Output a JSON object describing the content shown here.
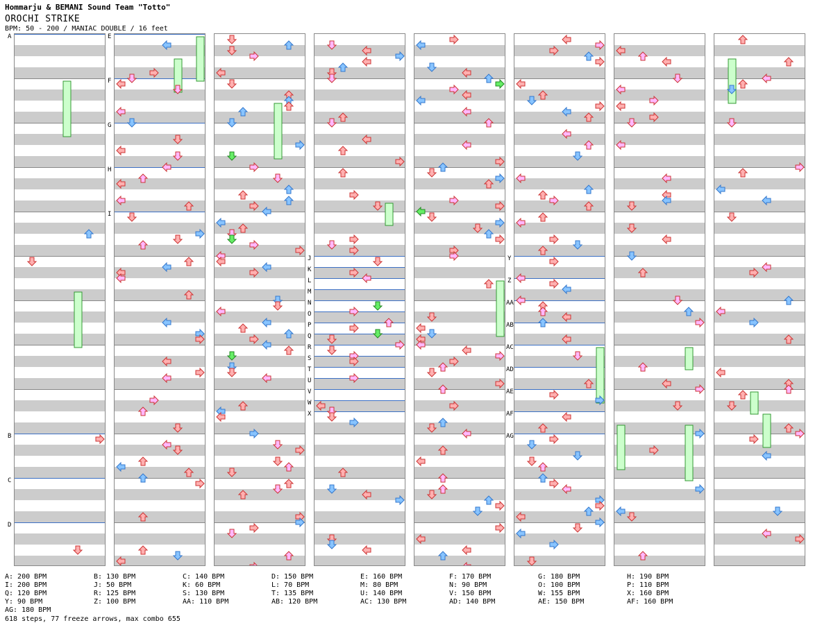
{
  "header": {
    "artist": "Hommarju & BEMANI Sound Team \"Totto\"",
    "title": "OROCHI STRIKE",
    "bpm_line": "BPM: 50 - 200 / MANIAC DOUBLE / 16 feet"
  },
  "section_labels": [
    "A",
    "B",
    "C",
    "D",
    "E",
    "F",
    "G",
    "H",
    "I",
    "J",
    "K",
    "L",
    "M",
    "N",
    "O",
    "P",
    "Q",
    "R",
    "S",
    "T",
    "U",
    "V",
    "W",
    "X",
    "Y",
    "Z",
    "AA",
    "AB",
    "AC",
    "AD",
    "AE",
    "AF",
    "AG"
  ],
  "legend": [
    "A: 200 BPM",
    "B: 130 BPM",
    "C: 140 BPM",
    "D: 150 BPM",
    "E: 160 BPM",
    "F: 170 BPM",
    "G: 180 BPM",
    "H: 190 BPM",
    "I: 200 BPM",
    "J: 50 BPM",
    "K: 60 BPM",
    "L: 70 BPM",
    "M: 80 BPM",
    "N: 90 BPM",
    "O: 100 BPM",
    "P: 110 BPM",
    "Q: 120 BPM",
    "R: 125 BPM",
    "S: 130 BPM",
    "T: 135 BPM",
    "U: 140 BPM",
    "V: 150 BPM",
    "W: 155 BPM",
    "X: 160 BPM",
    "Y: 90 BPM",
    "Z: 100 BPM",
    "AA: 110 BPM",
    "AB: 120 BPM",
    "AC: 130 BPM",
    "AD: 140 BPM",
    "AE: 150 BPM",
    "AF: 160 BPM",
    "AG: 180 BPM"
  ],
  "summary": "618 steps, 77 freeze arrows, max combo 655",
  "colors": {
    "red_arrow": "#ffb0b0",
    "blue_arrow": "#88c4ff",
    "pink_arrow": "#ffb8ff",
    "green_arrow": "#66ee66",
    "freeze": "#ccffcc",
    "bpm_line": "#3b6fc4",
    "stripe": "#cccccc"
  }
}
